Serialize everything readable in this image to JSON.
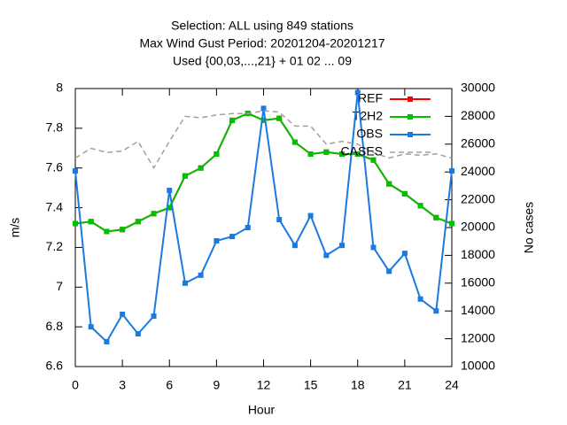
{
  "chart_data": {
    "type": "line",
    "title": [
      "Selection: ALL using   849 stations",
      "Max Wind Gust   Period: 20201204-20201217",
      "Used {00,03,...,21} + 01 02 ... 09"
    ],
    "xlabel": "Hour",
    "ylabel": "m/s",
    "y2label": "No cases",
    "x": [
      0,
      1,
      2,
      3,
      4,
      5,
      6,
      7,
      8,
      9,
      10,
      11,
      12,
      13,
      14,
      15,
      16,
      17,
      18,
      19,
      20,
      21,
      22,
      23,
      24
    ],
    "xlim": [
      0,
      24
    ],
    "xticks": [
      0,
      3,
      6,
      9,
      12,
      15,
      18,
      21,
      24
    ],
    "ylim": [
      6.6,
      8
    ],
    "yticks": [
      6.6,
      6.8,
      7,
      7.2,
      7.4,
      7.6,
      7.8,
      8
    ],
    "y2lim": [
      10000,
      30000
    ],
    "y2ticks": [
      10000,
      12000,
      14000,
      16000,
      18000,
      20000,
      22000,
      24000,
      26000,
      28000,
      30000
    ],
    "legend": "top-right",
    "series": [
      {
        "name": "REF",
        "color": "#ff0000",
        "marker": true,
        "values": [
          7.32,
          7.33,
          7.28,
          7.29,
          7.33,
          7.37,
          7.4,
          7.56,
          7.6,
          7.67,
          7.84,
          7.875,
          7.84,
          7.85,
          7.73,
          7.67,
          7.68,
          7.67,
          7.67,
          7.64,
          7.52,
          7.47,
          7.41,
          7.35,
          7.32
        ]
      },
      {
        "name": "T2H2",
        "color": "#00c000",
        "marker": true,
        "values": [
          7.32,
          7.33,
          7.28,
          7.29,
          7.33,
          7.37,
          7.4,
          7.56,
          7.6,
          7.67,
          7.84,
          7.875,
          7.84,
          7.85,
          7.73,
          7.67,
          7.68,
          7.67,
          7.67,
          7.64,
          7.52,
          7.47,
          7.41,
          7.35,
          7.32
        ]
      },
      {
        "name": "OBS",
        "color": "#1a7ae0",
        "marker": true,
        "values": [
          7.585,
          6.8,
          6.725,
          6.863,
          6.765,
          6.854,
          7.487,
          7.02,
          7.06,
          7.233,
          7.255,
          7.3,
          7.9,
          7.34,
          7.21,
          7.36,
          7.16,
          7.21,
          7.98,
          7.2,
          7.08,
          7.17,
          6.94,
          6.88,
          7.585
        ]
      },
      {
        "name": "CASES",
        "color": "#a0a0a0",
        "dashed": true,
        "axis": "y2",
        "values": [
          25000,
          25700,
          25400,
          25500,
          26200,
          24300,
          26200,
          28000,
          27900,
          28100,
          28200,
          28200,
          28400,
          28300,
          27300,
          27300,
          26000,
          26200,
          26000,
          25400,
          25000,
          25300,
          25200,
          25300,
          25000
        ]
      }
    ]
  }
}
